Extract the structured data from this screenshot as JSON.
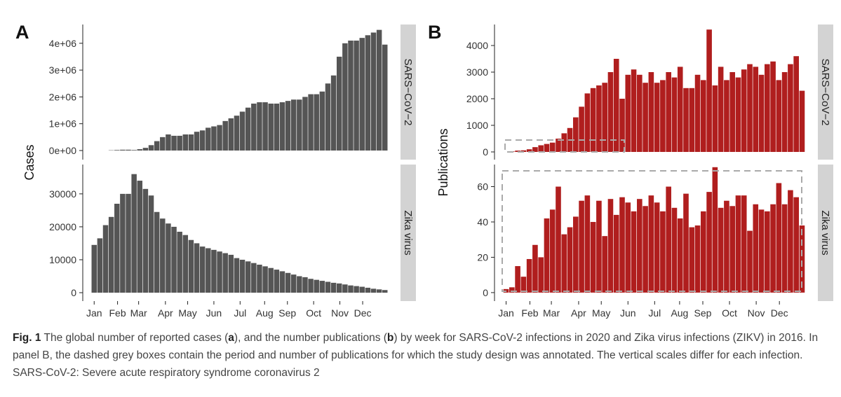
{
  "panels": [
    {
      "label": "A",
      "y_label": "Cases"
    },
    {
      "label": "B",
      "y_label": "Publications"
    }
  ],
  "chart_data": [
    {
      "type": "bar",
      "facet": "SARS−CoV−2",
      "color": "#555555",
      "x": [
        1,
        2,
        3,
        4,
        5,
        6,
        7,
        8,
        9,
        10,
        11,
        12,
        13,
        14,
        15,
        16,
        17,
        18,
        19,
        20,
        21,
        22,
        23,
        24,
        25,
        26,
        27,
        28,
        29,
        30,
        31,
        32,
        33,
        34,
        35,
        36,
        37,
        38,
        39,
        40,
        41,
        42,
        43,
        44,
        45,
        46,
        47,
        48,
        49,
        50,
        51,
        52
      ],
      "values": [
        null,
        null,
        null,
        10000,
        20000,
        30000,
        30000,
        20000,
        50000,
        100000,
        200000,
        350000,
        500000,
        600000,
        550000,
        550000,
        600000,
        600000,
        700000,
        750000,
        850000,
        900000,
        950000,
        1100000,
        1200000,
        1300000,
        1450000,
        1600000,
        1750000,
        1800000,
        1800000,
        1750000,
        1750000,
        1800000,
        1850000,
        1900000,
        1900000,
        2000000,
        2100000,
        2100000,
        2200000,
        2500000,
        2800000,
        3500000,
        4000000,
        4100000,
        4100000,
        4200000,
        4300000,
        4400000,
        4500000,
        3950000
      ],
      "xlim": [
        -1,
        54
      ],
      "ylim": [
        -340000,
        4700000
      ],
      "yticks": [
        {
          "value": 0,
          "label": "0e+00"
        },
        {
          "value": 1000000,
          "label": "1e+06"
        },
        {
          "value": 2000000,
          "label": "2e+06"
        },
        {
          "value": 3000000,
          "label": "3e+06"
        },
        {
          "value": 4000000,
          "label": "4e+06"
        }
      ]
    },
    {
      "type": "bar",
      "facet": "Zika virus",
      "color": "#555555",
      "x": [
        1,
        2,
        3,
        4,
        5,
        6,
        7,
        8,
        9,
        10,
        11,
        12,
        13,
        14,
        15,
        16,
        17,
        18,
        19,
        20,
        21,
        22,
        23,
        24,
        25,
        26,
        27,
        28,
        29,
        30,
        31,
        32,
        33,
        34,
        35,
        36,
        37,
        38,
        39,
        40,
        41,
        42,
        43,
        44,
        45,
        46,
        47,
        48,
        49,
        50,
        51,
        52
      ],
      "values": [
        14500,
        16500,
        20500,
        23000,
        27000,
        30000,
        30000,
        36000,
        34000,
        31500,
        29500,
        24500,
        22500,
        21000,
        20000,
        18500,
        17500,
        16000,
        15000,
        14000,
        13500,
        13000,
        12500,
        12000,
        11500,
        10500,
        10000,
        9500,
        9000,
        8500,
        8000,
        7500,
        7000,
        6500,
        6000,
        5500,
        5000,
        4700,
        4200,
        3900,
        3600,
        3300,
        3000,
        2800,
        2500,
        2200,
        2000,
        1800,
        1500,
        1200,
        1000,
        800
      ],
      "xlim": [
        -1,
        54
      ],
      "ylim": [
        -2550,
        38900
      ],
      "yticks": [
        0,
        10000,
        20000,
        30000
      ],
      "xticks": [
        {
          "value": 1,
          "label": "Jan"
        },
        {
          "value": 5.1,
          "label": "Feb"
        },
        {
          "value": 8.8,
          "label": "Mar"
        },
        {
          "value": 13.5,
          "label": "Apr"
        },
        {
          "value": 17.4,
          "label": "May"
        },
        {
          "value": 22,
          "label": "Jun"
        },
        {
          "value": 26.6,
          "label": "Jul"
        },
        {
          "value": 30.9,
          "label": "Aug"
        },
        {
          "value": 34.9,
          "label": "Sep"
        },
        {
          "value": 39.5,
          "label": "Oct"
        },
        {
          "value": 44.1,
          "label": "Nov"
        },
        {
          "value": 48.1,
          "label": "Dec"
        }
      ]
    },
    {
      "type": "bar",
      "facet": "SARS−CoV−2",
      "color": "#b01e1e",
      "x": [
        1,
        2,
        3,
        4,
        5,
        6,
        7,
        8,
        9,
        10,
        11,
        12,
        13,
        14,
        15,
        16,
        17,
        18,
        19,
        20,
        21,
        22,
        23,
        24,
        25,
        26,
        27,
        28,
        29,
        30,
        31,
        32,
        33,
        34,
        35,
        36,
        37,
        38,
        39,
        40,
        41,
        42,
        43,
        44,
        45,
        46,
        47,
        48,
        49,
        50,
        51,
        52
      ],
      "values": [
        0,
        20,
        50,
        60,
        100,
        180,
        250,
        300,
        350,
        500,
        700,
        900,
        1300,
        1700,
        2200,
        2400,
        2500,
        2600,
        3000,
        3500,
        2000,
        2900,
        3100,
        2900,
        2600,
        3000,
        2600,
        2700,
        3000,
        2800,
        3200,
        2400,
        2400,
        2900,
        2700,
        4600,
        2500,
        3200,
        2700,
        3000,
        2800,
        3100,
        3300,
        3200,
        2900,
        3300,
        3400,
        2700,
        3000,
        3300,
        3600,
        2300
      ],
      "xlim": [
        -1,
        54
      ],
      "ylim": [
        -290,
        4790
      ],
      "yticks": [
        0,
        1000,
        2000,
        3000,
        4000
      ]
    },
    {
      "type": "bar",
      "facet": "Zika virus",
      "color": "#b01e1e",
      "x": [
        1,
        2,
        3,
        4,
        5,
        6,
        7,
        8,
        9,
        10,
        11,
        12,
        13,
        14,
        15,
        16,
        17,
        18,
        19,
        20,
        21,
        22,
        23,
        24,
        25,
        26,
        27,
        28,
        29,
        30,
        31,
        32,
        33,
        34,
        35,
        36,
        37,
        38,
        39,
        40,
        41,
        42,
        43,
        44,
        45,
        46,
        47,
        48,
        49,
        50,
        51,
        52
      ],
      "values": [
        2,
        3,
        15,
        9,
        19,
        27,
        20,
        42,
        47,
        60,
        33,
        37,
        43,
        52,
        55,
        40,
        52,
        32,
        53,
        44,
        54,
        51,
        46,
        53,
        49,
        55,
        51,
        46,
        60,
        48,
        42,
        56,
        37,
        38,
        46,
        57,
        71,
        48,
        52,
        49,
        55,
        55,
        35,
        50,
        47,
        46,
        50,
        62,
        50,
        58,
        54,
        38
      ],
      "xlim": [
        -1,
        54
      ],
      "ylim": [
        -4.8,
        72.5
      ],
      "yticks": [
        0,
        20,
        40,
        60
      ],
      "xticks": [
        {
          "value": 1,
          "label": "Jan"
        },
        {
          "value": 5.1,
          "label": "Feb"
        },
        {
          "value": 8.8,
          "label": "Mar"
        },
        {
          "value": 13.5,
          "label": "Apr"
        },
        {
          "value": 17.4,
          "label": "May"
        },
        {
          "value": 22,
          "label": "Jun"
        },
        {
          "value": 26.6,
          "label": "Jul"
        },
        {
          "value": 30.9,
          "label": "Aug"
        },
        {
          "value": 34.9,
          "label": "Sep"
        },
        {
          "value": 39.5,
          "label": "Oct"
        },
        {
          "value": 44.1,
          "label": "Nov"
        },
        {
          "value": 48.1,
          "label": "Dec"
        }
      ]
    }
  ],
  "caption": {
    "label": "Fig. 1",
    "parts": [
      "The global number of reported cases (",
      "a",
      "), and the number publications (",
      "b",
      ") by week for SARS-CoV-2 infections in 2020 and Zika virus infections (ZIKV) in 2016. In panel B, the dashed grey boxes contain the period and number of publications for which the study design was annotated. The vertical scales differ for each infection. SARS-CoV-2: Severe acute respiratory syndrome coronavirus 2"
    ]
  }
}
